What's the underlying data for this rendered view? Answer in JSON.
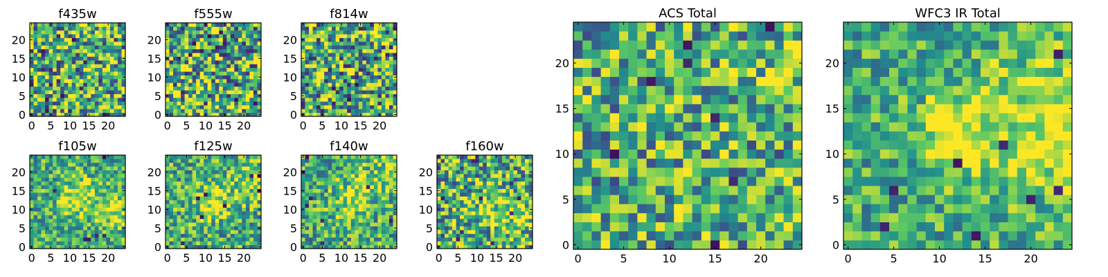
{
  "figure": {
    "background": "#ffffff"
  },
  "colormap": {
    "name": "viridis",
    "stops": [
      "#440154",
      "#3b528b",
      "#21908d",
      "#5dc963",
      "#fde725"
    ]
  },
  "chart_data": [
    {
      "id": "f435w",
      "type": "heatmap",
      "title": "f435w",
      "grid": 25,
      "xlim": [
        -0.5,
        24.5
      ],
      "ylim": [
        -0.5,
        24.5
      ],
      "xticks": [
        0,
        5,
        10,
        15,
        20
      ],
      "yticks": [
        0,
        5,
        10,
        15,
        20
      ],
      "texture": 0.62,
      "seed": 1,
      "min_count": 10,
      "blobs": []
    },
    {
      "id": "f555w",
      "type": "heatmap",
      "title": "f555w",
      "grid": 25,
      "xlim": [
        -0.5,
        24.5
      ],
      "ylim": [
        -0.5,
        24.5
      ],
      "xticks": [
        0,
        5,
        10,
        15,
        20
      ],
      "yticks": [
        0,
        5,
        10,
        15,
        20
      ],
      "texture": 0.62,
      "seed": 2,
      "min_count": 12,
      "blobs": []
    },
    {
      "id": "f814w",
      "type": "heatmap",
      "title": "f814w",
      "grid": 25,
      "xlim": [
        -0.5,
        24.5
      ],
      "ylim": [
        -0.5,
        24.5
      ],
      "xticks": [
        0,
        5,
        10,
        15,
        20
      ],
      "yticks": [
        0,
        5,
        10,
        15,
        20
      ],
      "texture": 0.62,
      "seed": 3,
      "min_count": 14,
      "blobs": []
    },
    {
      "id": "f105w",
      "type": "heatmap",
      "title": "f105w",
      "grid": 25,
      "xlim": [
        -0.5,
        24.5
      ],
      "ylim": [
        -0.5,
        24.5
      ],
      "xticks": [
        0,
        5,
        10,
        15,
        20
      ],
      "yticks": [
        0,
        5,
        10,
        15,
        20
      ],
      "texture": 0.38,
      "seed": 4,
      "min_count": 6,
      "blobs": [
        {
          "cx": 12,
          "cy": 13,
          "amp": 0.35,
          "r": 3.5
        },
        {
          "cx": 23,
          "cy": 10,
          "amp": 0.25,
          "r": 4
        }
      ]
    },
    {
      "id": "f125w",
      "type": "heatmap",
      "title": "f125w",
      "grid": 25,
      "xlim": [
        -0.5,
        24.5
      ],
      "ylim": [
        -0.5,
        24.5
      ],
      "xticks": [
        0,
        5,
        10,
        15,
        20
      ],
      "yticks": [
        0,
        5,
        10,
        15,
        20
      ],
      "texture": 0.42,
      "seed": 5,
      "min_count": 8,
      "blobs": [
        {
          "cx": 12,
          "cy": 12,
          "amp": 0.3,
          "r": 3.5
        },
        {
          "cx": 22,
          "cy": 18,
          "amp": 0.25,
          "r": 4
        }
      ]
    },
    {
      "id": "f140w",
      "type": "heatmap",
      "title": "f140w",
      "grid": 25,
      "xlim": [
        -0.5,
        24.5
      ],
      "ylim": [
        -0.5,
        24.5
      ],
      "xticks": [
        0,
        5,
        10,
        15,
        20
      ],
      "yticks": [
        0,
        5,
        10,
        15,
        20
      ],
      "texture": 0.42,
      "seed": 6,
      "min_count": 8,
      "blobs": [
        {
          "cx": 13,
          "cy": 13,
          "amp": 0.3,
          "r": 3.5
        },
        {
          "cx": 22,
          "cy": 20,
          "amp": 0.25,
          "r": 4
        }
      ]
    },
    {
      "id": "f160w",
      "type": "heatmap",
      "title": "f160w",
      "grid": 25,
      "xlim": [
        -0.5,
        24.5
      ],
      "ylim": [
        -0.5,
        24.5
      ],
      "xticks": [
        0,
        5,
        10,
        15,
        20
      ],
      "yticks": [
        0,
        5,
        10,
        15,
        20
      ],
      "texture": 0.55,
      "seed": 7,
      "min_count": 10,
      "blobs": [
        {
          "cx": 13,
          "cy": 11,
          "amp": 0.25,
          "r": 3.5
        },
        {
          "cx": 22,
          "cy": 8,
          "amp": 0.25,
          "r": 4
        }
      ]
    },
    {
      "id": "acs",
      "type": "heatmap",
      "title": "ACS Total",
      "grid": 25,
      "xlim": [
        -0.5,
        24.5
      ],
      "ylim": [
        -0.5,
        24.5
      ],
      "xticks": [
        0,
        5,
        10,
        15,
        20
      ],
      "yticks": [
        0,
        5,
        10,
        15,
        20
      ],
      "texture": 0.5,
      "seed": 8,
      "min_count": 8,
      "blobs": [
        {
          "cx": 23,
          "cy": 19,
          "amp": 0.2,
          "r": 3
        }
      ]
    },
    {
      "id": "wfc3",
      "type": "heatmap",
      "title": "WFC3 IR Total",
      "grid": 25,
      "xlim": [
        -0.5,
        24.5
      ],
      "ylim": [
        -0.5,
        24.5
      ],
      "xticks": [
        0,
        5,
        10,
        15,
        20
      ],
      "yticks": [
        0,
        5,
        10,
        15,
        20
      ],
      "texture": 0.35,
      "seed": 9,
      "min_count": 8,
      "blobs": [
        {
          "cx": 12,
          "cy": 12,
          "amp": 0.45,
          "r": 3
        },
        {
          "cx": 23,
          "cy": 11,
          "amp": 0.35,
          "r": 4
        },
        {
          "cx": 21,
          "cy": 18,
          "amp": 0.2,
          "r": 4
        }
      ]
    }
  ]
}
